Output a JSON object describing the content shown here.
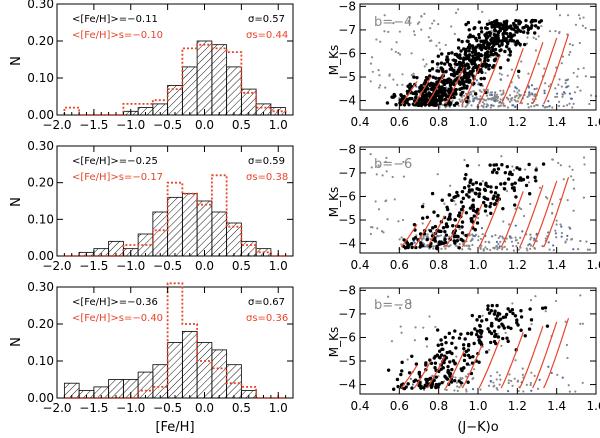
{
  "colors": {
    "black": "#000000",
    "red": "#e8452a",
    "gray": "#8a8a8a",
    "blue": "#4a6fb0"
  },
  "chart_data": [
    {
      "type": "histogram",
      "panel": "top-left",
      "xlabel": "",
      "ylabel": "N",
      "xlim": [
        -2.0,
        1.2
      ],
      "ylim": [
        0,
        0.3
      ],
      "xticks": [
        "−2.0",
        "−1.5",
        "−1.0",
        "−0.5",
        "0.0",
        "0.5",
        "1.0"
      ],
      "yticks": [
        "0.00",
        "0.10",
        "0.20",
        "0.30"
      ],
      "bin_width": 0.2,
      "bin_left_edges": [
        -1.9,
        -1.7,
        -1.5,
        -1.3,
        -1.1,
        -0.9,
        -0.7,
        -0.5,
        -0.3,
        -0.1,
        0.1,
        0.3,
        0.5,
        0.7,
        0.9
      ],
      "series": [
        {
          "name": "total (hatched)",
          "style": "hatched",
          "values": [
            0.0,
            0.0,
            0.0,
            0.0,
            0.01,
            0.02,
            0.03,
            0.08,
            0.13,
            0.2,
            0.19,
            0.13,
            0.07,
            0.03,
            0.02
          ]
        },
        {
          "name": "red (dotted)",
          "style": "dotted",
          "values": [
            0.02,
            0.0,
            0.0,
            0.0,
            0.03,
            0.03,
            0.04,
            0.07,
            0.18,
            0.19,
            0.18,
            0.17,
            0.06,
            0.02,
            0.01
          ]
        }
      ],
      "annotations": {
        "mean_black": "<[Fe/H]>=−0.11",
        "sigma_black": "σ=0.57",
        "mean_red": "<[Fe/H]>s=−0.10",
        "sigma_red": "σs=0.44"
      }
    },
    {
      "type": "histogram",
      "panel": "middle-left",
      "xlabel": "",
      "ylabel": "N",
      "xlim": [
        -2.0,
        1.2
      ],
      "ylim": [
        0,
        0.3
      ],
      "xticks": [
        "−2.0",
        "−1.5",
        "−1.0",
        "−0.5",
        "0.0",
        "0.5",
        "1.0"
      ],
      "yticks": [
        "0.00",
        "0.10",
        "0.20",
        "0.30"
      ],
      "bin_width": 0.2,
      "bin_left_edges": [
        -1.9,
        -1.7,
        -1.5,
        -1.3,
        -1.1,
        -0.9,
        -0.7,
        -0.5,
        -0.3,
        -0.1,
        0.1,
        0.3,
        0.5,
        0.7,
        0.9
      ],
      "series": [
        {
          "name": "total (hatched)",
          "style": "hatched",
          "values": [
            0.0,
            0.01,
            0.02,
            0.04,
            0.02,
            0.06,
            0.12,
            0.16,
            0.17,
            0.15,
            0.12,
            0.09,
            0.04,
            0.02,
            0.0
          ]
        },
        {
          "name": "red (dotted)",
          "style": "dotted",
          "values": [
            0.0,
            0.0,
            0.0,
            0.0,
            0.03,
            0.03,
            0.07,
            0.2,
            0.17,
            0.14,
            0.22,
            0.08,
            0.03,
            0.01,
            0.0
          ]
        }
      ],
      "annotations": {
        "mean_black": "<[Fe/H]>=−0.25",
        "sigma_black": "σ=0.59",
        "mean_red": "<[Fe/H]>s=−0.17",
        "sigma_red": "σs=0.38"
      }
    },
    {
      "type": "histogram",
      "panel": "bottom-left",
      "xlabel": "[Fe/H]",
      "ylabel": "N",
      "xlim": [
        -2.0,
        1.2
      ],
      "ylim": [
        0,
        0.3
      ],
      "xticks": [
        "−2.0",
        "−1.5",
        "−1.0",
        "−0.5",
        "0.0",
        "0.5",
        "1.0"
      ],
      "yticks": [
        "0.00",
        "0.10",
        "0.20",
        "0.30"
      ],
      "bin_width": 0.2,
      "bin_left_edges": [
        -1.9,
        -1.7,
        -1.5,
        -1.3,
        -1.1,
        -0.9,
        -0.7,
        -0.5,
        -0.3,
        -0.1,
        0.1,
        0.3,
        0.5,
        0.7,
        0.9
      ],
      "series": [
        {
          "name": "total (hatched)",
          "style": "hatched",
          "values": [
            0.04,
            0.02,
            0.03,
            0.05,
            0.05,
            0.07,
            0.09,
            0.15,
            0.18,
            0.15,
            0.13,
            0.09,
            0.02,
            0.0,
            0.0
          ]
        },
        {
          "name": "red (dotted)",
          "style": "dotted",
          "values": [
            0.0,
            0.0,
            0.0,
            0.0,
            0.0,
            0.02,
            0.03,
            0.31,
            0.2,
            0.1,
            0.08,
            0.04,
            0.03,
            0.0,
            0.0
          ]
        }
      ],
      "annotations": {
        "mean_black": "<[Fe/H]>=−0.36",
        "sigma_black": "σ=0.67",
        "mean_red": "<[Fe/H]>s=−0.40",
        "sigma_red": "σs=0.36"
      }
    },
    {
      "type": "scatter",
      "panel": "top-right",
      "label": "b=−4",
      "xlabel": "",
      "ylabel": "M_Ks",
      "xlim": [
        0.4,
        1.6
      ],
      "ylim": [
        -3.6,
        -8.1
      ],
      "xticks": [
        "0.4",
        "0.6",
        "0.8",
        "1.0",
        "1.2",
        "1.4",
        "1.6"
      ],
      "yticks": [
        "−4",
        "−5",
        "−6",
        "−7",
        "−8"
      ],
      "black_n": 700,
      "gray_n": 450,
      "seed": 11,
      "isochrone_red_tip_jk": [
        0.69,
        0.76,
        0.83,
        0.93,
        1.02,
        1.11,
        1.23,
        1.33,
        1.4,
        1.46
      ]
    },
    {
      "type": "scatter",
      "panel": "middle-right",
      "label": "b=−6",
      "xlabel": "",
      "ylabel": "M_Ks",
      "xlim": [
        0.4,
        1.6
      ],
      "ylim": [
        -3.6,
        -8.1
      ],
      "xticks": [
        "0.4",
        "0.6",
        "0.8",
        "1.0",
        "1.2",
        "1.4",
        "1.6"
      ],
      "yticks": [
        "−4",
        "−5",
        "−6",
        "−7",
        "−8"
      ],
      "black_n": 220,
      "gray_n": 260,
      "seed": 23,
      "isochrone_red_tip_jk": [
        0.69,
        0.76,
        0.83,
        0.93,
        1.02,
        1.11,
        1.23,
        1.33,
        1.4,
        1.46
      ]
    },
    {
      "type": "scatter",
      "panel": "bottom-right",
      "label": "b=−8",
      "xlabel": "(J−K)o",
      "ylabel": "M_Ks",
      "xlim": [
        0.4,
        1.6
      ],
      "ylim": [
        -3.6,
        -8.1
      ],
      "xticks": [
        "0.4",
        "0.6",
        "0.8",
        "1.0",
        "1.2",
        "1.4",
        "1.6"
      ],
      "yticks": [
        "−4",
        "−5",
        "−6",
        "−7",
        "−8"
      ],
      "black_n": 230,
      "gray_n": 120,
      "seed": 37,
      "isochrone_red_tip_jk": [
        0.69,
        0.76,
        0.83,
        0.93,
        1.02,
        1.11,
        1.23,
        1.33,
        1.4,
        1.46
      ]
    }
  ]
}
